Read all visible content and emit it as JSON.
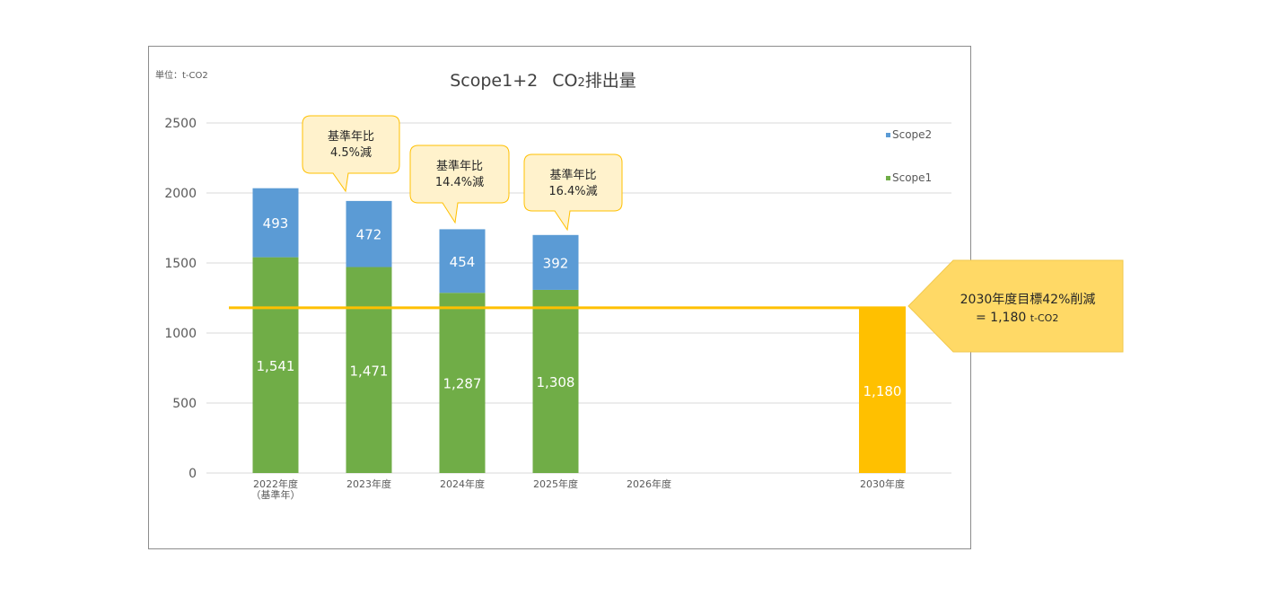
{
  "chart_data": {
    "type": "bar",
    "stacked": true,
    "title_main": "Scope1+2",
    "title_co2": "CO",
    "title_sub": "2",
    "title_tail": "排出量",
    "unit_label": "単位：t-CO2",
    "categories": [
      "2022年度",
      "2023年度",
      "2024年度",
      "2025年度",
      "2026年度",
      "2030年度"
    ],
    "category_sublabels": [
      "（基準年）",
      "",
      "",
      "",
      "",
      ""
    ],
    "ylim": [
      0,
      2500
    ],
    "yticks": [
      0,
      500,
      1000,
      1500,
      2000,
      2500
    ],
    "grid": true,
    "legend_placement": "right",
    "series": [
      {
        "name": "Scope1",
        "color": "#70ad47",
        "values": [
          1541,
          1471,
          1287,
          1308,
          null,
          null
        ],
        "labels": [
          "1,541",
          "1,471",
          "1,287",
          "1,308",
          "",
          ""
        ]
      },
      {
        "name": "Scope2",
        "color": "#5b9bd5",
        "values": [
          493,
          472,
          454,
          392,
          null,
          null
        ],
        "labels": [
          "493",
          "472",
          "454",
          "392",
          "",
          ""
        ]
      }
    ],
    "target": {
      "category": "2030年度",
      "value": 1180,
      "label": "1,180",
      "color": "#ffc000"
    },
    "target_line": {
      "value": 1180,
      "color": "#ffc000"
    },
    "callouts": [
      {
        "category": "2023年度",
        "line1": "基準年比",
        "line2": "4.5%減"
      },
      {
        "category": "2024年度",
        "line1": "基準年比",
        "line2": "14.4%減"
      },
      {
        "category": "2025年度",
        "line1": "基準年比",
        "line2": "16.4%減"
      }
    ],
    "target_callout": {
      "line1": "2030年度目標42%削減",
      "line2_prefix": "= 1,180",
      "line2_unit": "t-CO2",
      "color": "#ffd966"
    }
  }
}
